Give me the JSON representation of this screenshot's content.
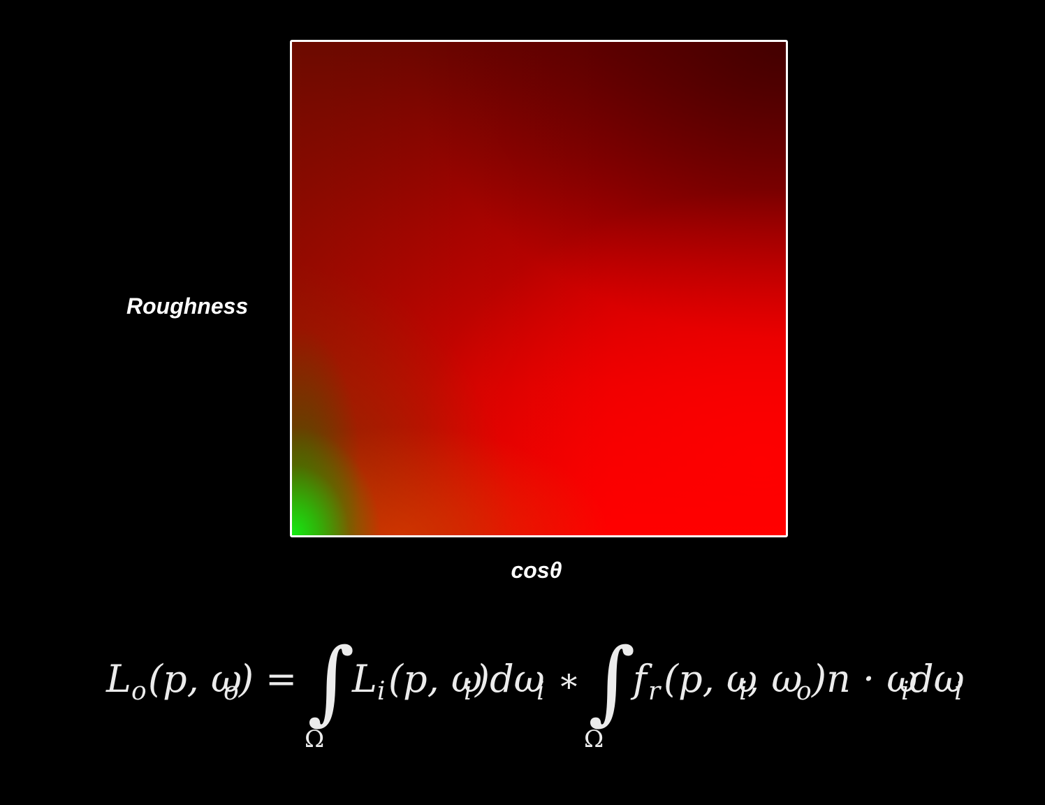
{
  "axes": {
    "y_label": "Roughness",
    "x_label": "cosθ"
  },
  "lut": {
    "description_colors": {
      "red": "#ff0000",
      "dark_red": "#5a0000",
      "green": "#14eb14",
      "frame": "#ffffff"
    }
  },
  "equation": {
    "lhs_L": "L",
    "lhs_sub_o": "o",
    "lhs_args": "(p, ω",
    "lhs_args_sub": "o",
    "lhs_close": ")",
    "equals": "=",
    "integral": "∫",
    "domain": "Ω",
    "term1_L": "L",
    "term1_sub": "i",
    "term1_args": "(p, ω",
    "term1_args_sub": "i",
    "term1_tail": ")dω",
    "term1_tail_sub": "i",
    "star": "∗",
    "term2_f": "f",
    "term2_sub": "r",
    "term2_args": "(p, ω",
    "term2_args_sub_1": "i",
    "term2_mid": ", ω",
    "term2_args_sub_2": "o",
    "term2_tail": ")n · ω",
    "term2_tail_sub": "i",
    "term2_end": "dω",
    "term2_end_sub": "i"
  }
}
